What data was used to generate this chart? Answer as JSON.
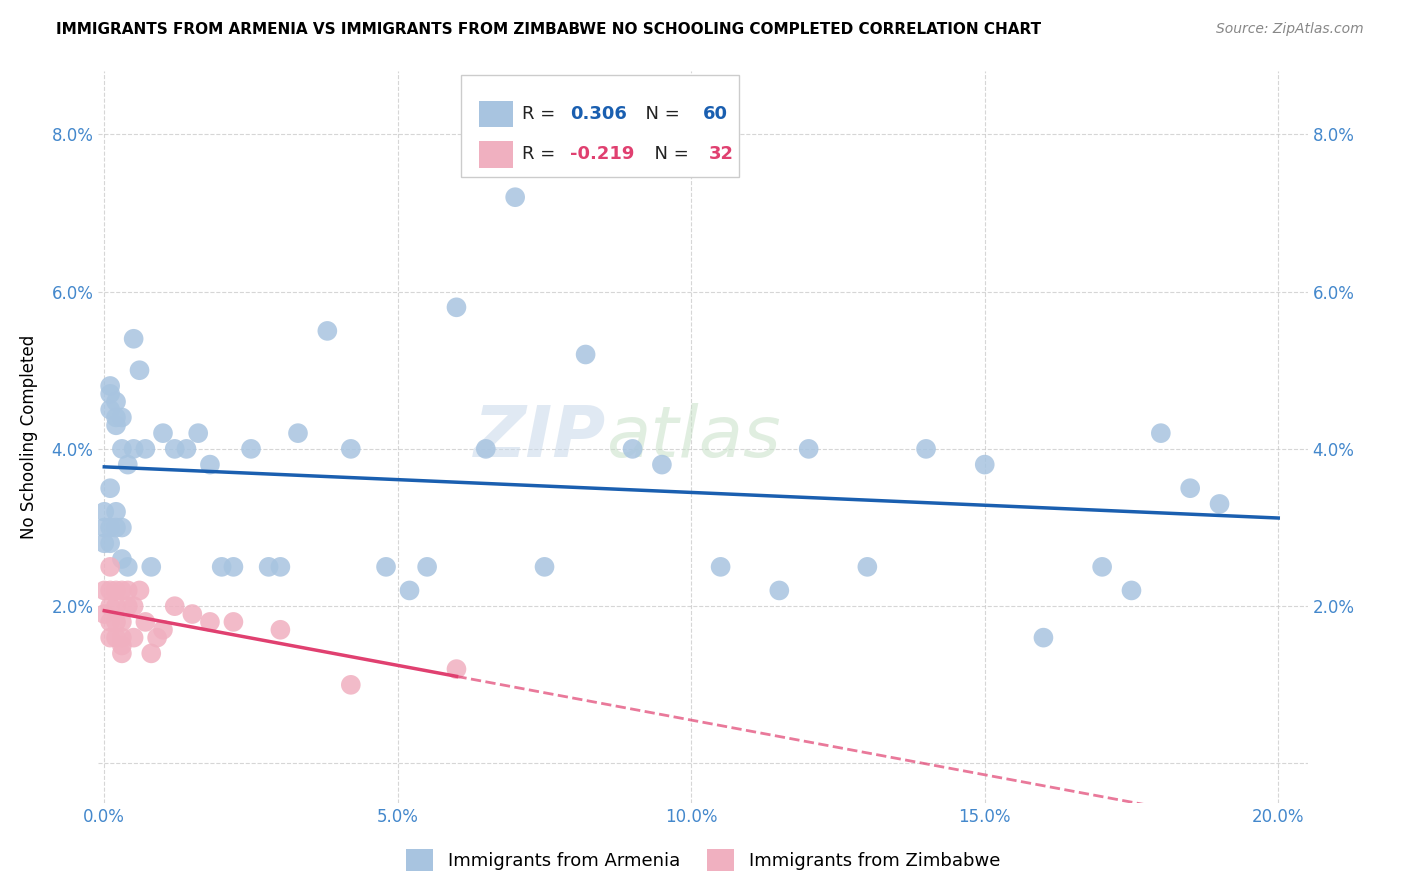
{
  "title": "IMMIGRANTS FROM ARMENIA VS IMMIGRANTS FROM ZIMBABWE NO SCHOOLING COMPLETED CORRELATION CHART",
  "source": "Source: ZipAtlas.com",
  "ylabel": "No Schooling Completed",
  "xlim": [
    -0.001,
    0.205
  ],
  "ylim": [
    -0.005,
    0.088
  ],
  "xticks": [
    0.0,
    0.05,
    0.1,
    0.15,
    0.2
  ],
  "yticks": [
    0.0,
    0.02,
    0.04,
    0.06,
    0.08
  ],
  "ytick_labels_left": [
    "",
    "2.0%",
    "4.0%",
    "6.0%",
    "8.0%"
  ],
  "ytick_labels_right": [
    "",
    "2.0%",
    "4.0%",
    "6.0%",
    "8.0%"
  ],
  "xtick_labels": [
    "0.0%",
    "5.0%",
    "10.0%",
    "15.0%",
    "20.0%"
  ],
  "color_armenia": "#a8c4e0",
  "color_zimbabwe": "#f0b0c0",
  "color_line_armenia": "#1a5fb0",
  "color_line_zimbabwe": "#e04070",
  "watermark_zip": "ZIP",
  "watermark_atlas": "atlas",
  "armenia_x": [
    0.0,
    0.0,
    0.0,
    0.001,
    0.001,
    0.001,
    0.001,
    0.001,
    0.001,
    0.002,
    0.002,
    0.002,
    0.002,
    0.002,
    0.003,
    0.003,
    0.003,
    0.003,
    0.004,
    0.004,
    0.005,
    0.005,
    0.006,
    0.007,
    0.008,
    0.01,
    0.012,
    0.014,
    0.016,
    0.018,
    0.02,
    0.022,
    0.025,
    0.028,
    0.03,
    0.033,
    0.038,
    0.042,
    0.048,
    0.052,
    0.055,
    0.06,
    0.065,
    0.07,
    0.075,
    0.082,
    0.09,
    0.095,
    0.105,
    0.115,
    0.12,
    0.13,
    0.14,
    0.15,
    0.16,
    0.17,
    0.175,
    0.18,
    0.185,
    0.19
  ],
  "armenia_y": [
    0.028,
    0.03,
    0.032,
    0.045,
    0.047,
    0.035,
    0.03,
    0.028,
    0.048,
    0.044,
    0.046,
    0.043,
    0.03,
    0.032,
    0.044,
    0.04,
    0.03,
    0.026,
    0.038,
    0.025,
    0.04,
    0.054,
    0.05,
    0.04,
    0.025,
    0.042,
    0.04,
    0.04,
    0.042,
    0.038,
    0.025,
    0.025,
    0.04,
    0.025,
    0.025,
    0.042,
    0.055,
    0.04,
    0.025,
    0.022,
    0.025,
    0.058,
    0.04,
    0.072,
    0.025,
    0.052,
    0.04,
    0.038,
    0.025,
    0.022,
    0.04,
    0.025,
    0.04,
    0.038,
    0.016,
    0.025,
    0.022,
    0.042,
    0.035,
    0.033
  ],
  "zimbabwe_x": [
    0.0,
    0.0,
    0.001,
    0.001,
    0.001,
    0.001,
    0.001,
    0.002,
    0.002,
    0.002,
    0.002,
    0.003,
    0.003,
    0.003,
    0.003,
    0.003,
    0.004,
    0.004,
    0.005,
    0.005,
    0.006,
    0.007,
    0.008,
    0.009,
    0.01,
    0.012,
    0.015,
    0.018,
    0.022,
    0.03,
    0.042,
    0.06
  ],
  "zimbabwe_y": [
    0.022,
    0.019,
    0.02,
    0.018,
    0.016,
    0.025,
    0.022,
    0.016,
    0.02,
    0.018,
    0.022,
    0.015,
    0.018,
    0.022,
    0.016,
    0.014,
    0.02,
    0.022,
    0.016,
    0.02,
    0.022,
    0.018,
    0.014,
    0.016,
    0.017,
    0.02,
    0.019,
    0.018,
    0.018,
    0.017,
    0.01,
    0.012
  ]
}
